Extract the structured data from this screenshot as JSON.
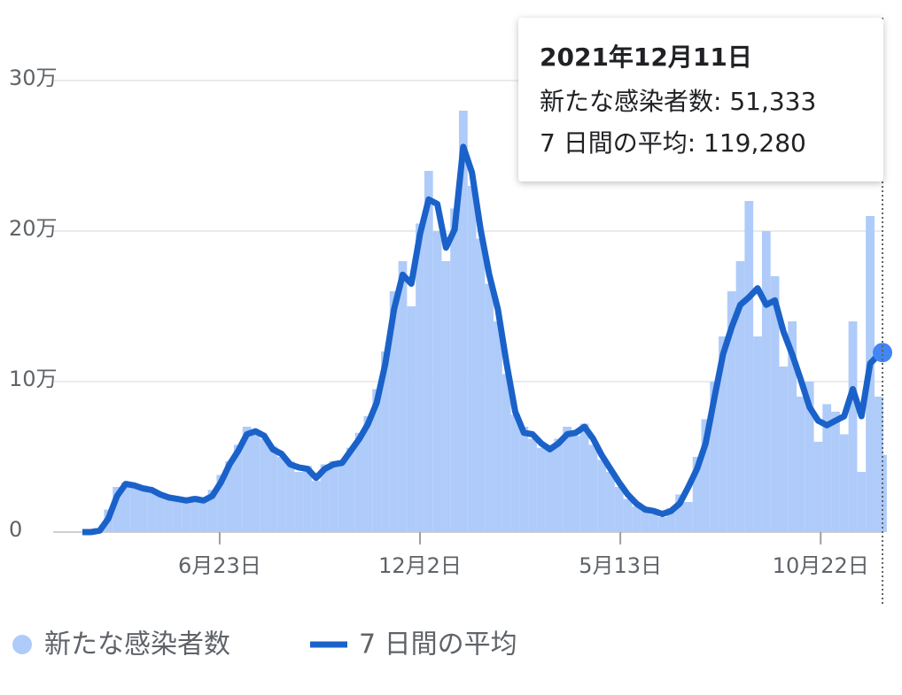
{
  "chart_data": {
    "type": "bar",
    "x": [
      0,
      7,
      14,
      21,
      28,
      35,
      42,
      49,
      56,
      63,
      70,
      77,
      84,
      91,
      98,
      105,
      112,
      119,
      126,
      133,
      140,
      147,
      154,
      161,
      168,
      175,
      182,
      189,
      196,
      203,
      210,
      217,
      224,
      231,
      238,
      245,
      252,
      259,
      266,
      273,
      280,
      287,
      294,
      301,
      308,
      315,
      322,
      329,
      336,
      343,
      350,
      357,
      364,
      371,
      378,
      385,
      392,
      399,
      406,
      413,
      420,
      427,
      434,
      441,
      448,
      455,
      462,
      469,
      476,
      483,
      490,
      497,
      504,
      511,
      518,
      525,
      532,
      539,
      546,
      553,
      560,
      567,
      574,
      581,
      588,
      595,
      602,
      609,
      616,
      623,
      630,
      637,
      644,
      647
    ],
    "series": [
      {
        "name": "新たな感染者数",
        "color": "#aecbfa",
        "type": "bar",
        "values": [
          0,
          100,
          2000,
          15000,
          30000,
          33000,
          30000,
          31000,
          27000,
          26000,
          22000,
          23000,
          20000,
          24000,
          22000,
          28000,
          38000,
          47000,
          58000,
          70000,
          66000,
          62000,
          57000,
          50000,
          47000,
          40000,
          44000,
          34000,
          45000,
          47000,
          48000,
          56000,
          66000,
          77000,
          95000,
          120000,
          160000,
          180000,
          150000,
          205000,
          240000,
          200000,
          180000,
          215000,
          280000,
          230000,
          195000,
          165000,
          140000,
          105000,
          78000,
          70000,
          62000,
          56000,
          58000,
          62000,
          70000,
          64000,
          72000,
          58000,
          48000,
          40000,
          30000,
          22000,
          17000,
          14000,
          12000,
          10000,
          16000,
          25000,
          20000,
          50000,
          75000,
          100000,
          130000,
          160000,
          180000,
          220000,
          130000,
          200000,
          170000,
          110000,
          140000,
          90000,
          100000,
          60000,
          85000,
          80000,
          65000,
          140000,
          40000,
          210000,
          90000,
          51333
        ]
      },
      {
        "name": "7 日間の平均",
        "color": "#1a62c9",
        "type": "line",
        "values": [
          0,
          0,
          1000,
          9000,
          24000,
          32000,
          31000,
          29000,
          28000,
          25000,
          23000,
          22000,
          21000,
          22000,
          21000,
          24000,
          33000,
          45000,
          54000,
          65000,
          67000,
          64000,
          55000,
          52000,
          45000,
          43000,
          42000,
          36000,
          42000,
          45000,
          46000,
          54000,
          62000,
          72000,
          86000,
          112000,
          148000,
          171000,
          165000,
          198000,
          221000,
          218000,
          189000,
          201000,
          256000,
          239000,
          201000,
          171000,
          148000,
          112000,
          80000,
          66000,
          65000,
          59000,
          55000,
          59000,
          65000,
          66000,
          70000,
          62000,
          51000,
          42000,
          33000,
          25000,
          19000,
          15000,
          14000,
          12000,
          14000,
          19000,
          30000,
          42000,
          59000,
          89000,
          118000,
          136000,
          151000,
          156000,
          162000,
          151000,
          154000,
          133000,
          118000,
          101000,
          83000,
          74000,
          71000,
          74000,
          77000,
          95000,
          77000,
          112000,
          118000,
          119280
        ]
      }
    ],
    "xlim": [
      0,
      647
    ],
    "xticks": [
      {
        "value": 111,
        "label": "6月23日"
      },
      {
        "value": 273,
        "label": "12月2日"
      },
      {
        "value": 435,
        "label": "5月13日"
      },
      {
        "value": 597,
        "label": "10月22日"
      }
    ],
    "ylim": [
      0,
      300000
    ],
    "yticks": [
      0,
      {
        "value": 100000,
        "label": "10万"
      },
      {
        "value": 200000,
        "label": "20万"
      },
      {
        "value": 300000,
        "label": "30万"
      }
    ],
    "grid": true,
    "legend": "bottom",
    "tooltip": {
      "title": "2021年12月11日",
      "lines": [
        "新たな感染者数: 51,333",
        "7 日間の平均: 119,280"
      ]
    }
  }
}
